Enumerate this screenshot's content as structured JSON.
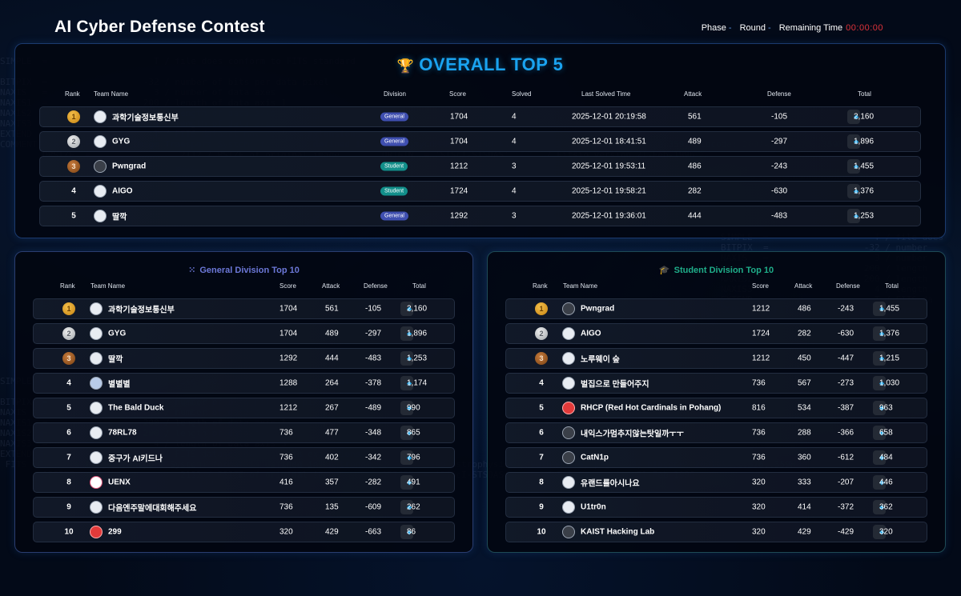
{
  "header": {
    "title": "AI Cyber Defense Contest",
    "phase_label": "Phase",
    "phase_value": "-",
    "round_label": "Round",
    "round_value": "-",
    "remaining_label": "Remaining Time",
    "remaining_value": "00:00:00"
  },
  "overall": {
    "title": "OVERALL TOP 5",
    "icon": "trophy-icon",
    "columns": [
      "Rank",
      "Team Name",
      "Division",
      "Score",
      "Solved",
      "Last Solved Time",
      "Attack",
      "Defense",
      "Total"
    ],
    "rows": [
      {
        "rank": "1",
        "medal": "gold",
        "team": "과학기술정보통신부",
        "division": "General",
        "score": "1704",
        "solved": "4",
        "last": "2025-12-01 20:19:58",
        "attack": "561",
        "defense": "-105",
        "total": "2,160"
      },
      {
        "rank": "2",
        "medal": "silver",
        "team": "GYG",
        "division": "General",
        "score": "1704",
        "solved": "4",
        "last": "2025-12-01 18:41:51",
        "attack": "489",
        "defense": "-297",
        "total": "1,896"
      },
      {
        "rank": "3",
        "medal": "bronze",
        "team": "Pwngrad",
        "division": "Student",
        "score": "1212",
        "solved": "3",
        "last": "2025-12-01 19:53:11",
        "attack": "486",
        "defense": "-243",
        "total": "1,455"
      },
      {
        "rank": "4",
        "medal": "",
        "team": "AIGO",
        "division": "Student",
        "score": "1724",
        "solved": "4",
        "last": "2025-12-01 19:58:21",
        "attack": "282",
        "defense": "-630",
        "total": "1,376"
      },
      {
        "rank": "5",
        "medal": "",
        "team": "딸깍",
        "division": "General",
        "score": "1292",
        "solved": "3",
        "last": "2025-12-01 19:36:01",
        "attack": "444",
        "defense": "-483",
        "total": "1,253"
      }
    ]
  },
  "general": {
    "title": "General Division Top 10",
    "icon": "users-icon",
    "columns": [
      "Rank",
      "Team Name",
      "Score",
      "Attack",
      "Defense",
      "Total"
    ],
    "rows": [
      {
        "rank": "1",
        "medal": "gold",
        "team": "과학기술정보통신부",
        "score": "1704",
        "attack": "561",
        "defense": "-105",
        "total": "2,160"
      },
      {
        "rank": "2",
        "medal": "silver",
        "team": "GYG",
        "score": "1704",
        "attack": "489",
        "defense": "-297",
        "total": "1,896"
      },
      {
        "rank": "3",
        "medal": "bronze",
        "team": "딸깍",
        "score": "1292",
        "attack": "444",
        "defense": "-483",
        "total": "1,253"
      },
      {
        "rank": "4",
        "medal": "",
        "team": "별별별",
        "score": "1288",
        "attack": "264",
        "defense": "-378",
        "total": "1,174"
      },
      {
        "rank": "5",
        "medal": "",
        "team": "The Bald Duck",
        "score": "1212",
        "attack": "267",
        "defense": "-489",
        "total": "990"
      },
      {
        "rank": "6",
        "medal": "",
        "team": "78RL78",
        "score": "736",
        "attack": "477",
        "defense": "-348",
        "total": "865"
      },
      {
        "rank": "7",
        "medal": "",
        "team": "중구가 AI키드나",
        "score": "736",
        "attack": "402",
        "defense": "-342",
        "total": "796"
      },
      {
        "rank": "8",
        "medal": "",
        "team": "UENX",
        "score": "416",
        "attack": "357",
        "defense": "-282",
        "total": "491"
      },
      {
        "rank": "9",
        "medal": "",
        "team": "다음엔주말에대회해주세요",
        "score": "736",
        "attack": "135",
        "defense": "-609",
        "total": "262"
      },
      {
        "rank": "10",
        "medal": "",
        "team": "299",
        "score": "320",
        "attack": "429",
        "defense": "-663",
        "total": "86"
      }
    ]
  },
  "student": {
    "title": "Student Division Top 10",
    "icon": "graduation-cap-icon",
    "columns": [
      "Rank",
      "Team Name",
      "Score",
      "Attack",
      "Defense",
      "Total"
    ],
    "rows": [
      {
        "rank": "1",
        "medal": "gold",
        "team": "Pwngrad",
        "score": "1212",
        "attack": "486",
        "defense": "-243",
        "total": "1,455"
      },
      {
        "rank": "2",
        "medal": "silver",
        "team": "AIGO",
        "score": "1724",
        "attack": "282",
        "defense": "-630",
        "total": "1,376"
      },
      {
        "rank": "3",
        "medal": "bronze",
        "team": "노루웨이 숲",
        "score": "1212",
        "attack": "450",
        "defense": "-447",
        "total": "1,215"
      },
      {
        "rank": "4",
        "medal": "",
        "team": "벌집으로 만들어주지",
        "score": "736",
        "attack": "567",
        "defense": "-273",
        "total": "1,030"
      },
      {
        "rank": "5",
        "medal": "",
        "team": "RHCP (Red Hot Cardinals in Pohang)",
        "score": "816",
        "attack": "534",
        "defense": "-387",
        "total": "963"
      },
      {
        "rank": "6",
        "medal": "",
        "team": "내익스가멈추지않는탓일까ㅜㅜ",
        "score": "736",
        "attack": "288",
        "defense": "-366",
        "total": "658"
      },
      {
        "rank": "7",
        "medal": "",
        "team": "CatN1p",
        "score": "736",
        "attack": "360",
        "defense": "-612",
        "total": "484"
      },
      {
        "rank": "8",
        "medal": "",
        "team": "유랜드를아시나요",
        "score": "320",
        "attack": "333",
        "defense": "-207",
        "total": "446"
      },
      {
        "rank": "9",
        "medal": "",
        "team": "U1tr0n",
        "score": "320",
        "attack": "414",
        "defense": "-372",
        "total": "362"
      },
      {
        "rank": "10",
        "medal": "",
        "team": "KAIST Hacking Lab",
        "score": "320",
        "attack": "429",
        "defense": "-429",
        "total": "320"
      }
    ]
  },
  "colors": {
    "accent_blue": "#1aa3f0",
    "general_badge": "#3f4fb0",
    "student_badge": "#128f8a",
    "timer_red": "#e0333a",
    "general_title": "#6c78d8",
    "student_title": "#1fae8a"
  }
}
